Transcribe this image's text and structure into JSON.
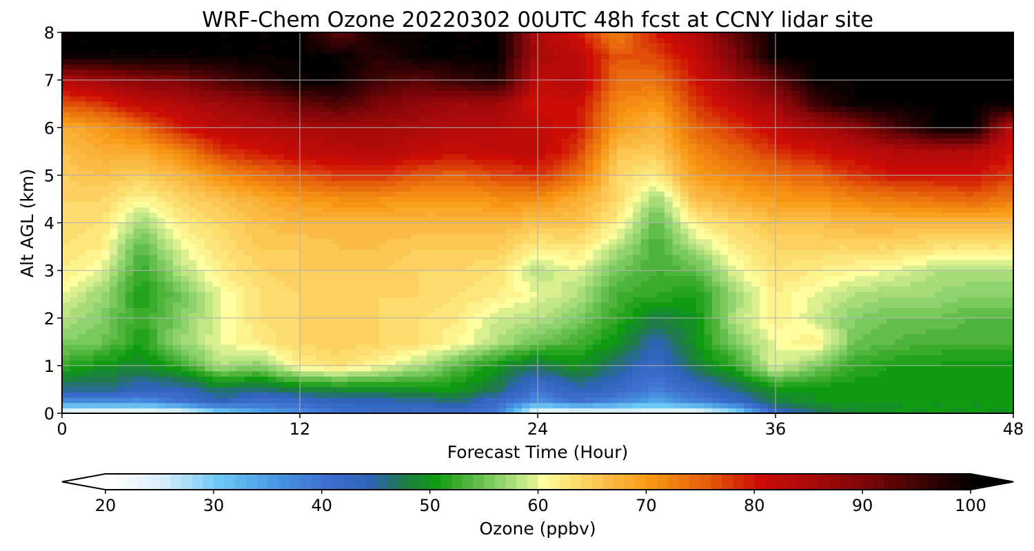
{
  "chart_data": {
    "type": "heatmap",
    "title": "WRF-Chem Ozone  20220302 00UTC 48h fcst at CCNY lidar site",
    "xlabel": "Forecast Time (Hour)",
    "ylabel": "Alt AGL (km)",
    "xlim": [
      0,
      48
    ],
    "ylim": [
      0,
      8
    ],
    "x_ticks": [
      0,
      12,
      24,
      36,
      48
    ],
    "y_ticks": [
      0,
      1,
      2,
      3,
      4,
      5,
      6,
      7,
      8
    ],
    "grid": true,
    "x": [
      0,
      2,
      4,
      6,
      8,
      10,
      12,
      14,
      16,
      18,
      20,
      22,
      24,
      26,
      28,
      30,
      32,
      34,
      36,
      38,
      40,
      42,
      44,
      46,
      48
    ],
    "y": [
      0,
      0.25,
      0.5,
      1,
      1.5,
      2,
      2.5,
      3,
      3.5,
      4,
      4.5,
      5,
      5.5,
      6,
      6.5,
      7,
      7.5,
      8
    ],
    "z": [
      [
        22,
        21,
        21,
        22,
        28,
        33,
        36,
        40,
        42,
        41,
        42,
        38,
        21,
        21,
        22,
        22,
        21,
        27,
        42,
        46,
        49,
        50,
        50,
        50,
        50
      ],
      [
        36,
        37,
        36,
        40,
        44,
        41,
        42,
        44,
        44,
        45,
        46,
        42,
        36,
        40,
        37,
        34,
        38,
        42,
        48,
        50,
        50,
        50,
        50,
        50,
        50
      ],
      [
        45,
        46,
        43,
        44,
        47,
        46,
        48,
        49,
        49,
        50,
        50,
        47,
        40,
        44,
        42,
        38,
        42,
        46,
        50,
        50,
        50,
        50,
        50,
        50,
        50
      ],
      [
        52,
        50,
        49,
        52,
        58,
        56,
        62,
        63,
        61,
        58,
        54,
        50,
        47,
        50,
        46,
        42,
        48,
        52,
        60,
        56,
        52,
        51,
        51,
        50,
        50
      ],
      [
        56,
        55,
        51,
        57,
        60,
        62,
        64,
        65,
        64,
        63,
        61,
        58,
        55,
        53,
        50,
        44,
        50,
        56,
        60,
        62,
        55,
        54,
        53,
        53,
        53
      ],
      [
        58,
        56,
        52,
        56,
        60,
        63,
        64,
        64,
        64,
        63,
        62,
        59,
        58,
        56,
        52,
        48,
        50,
        58,
        62,
        59,
        56,
        55,
        55,
        54,
        54
      ],
      [
        60,
        57,
        51,
        55,
        60,
        63,
        64,
        64,
        64,
        64,
        63,
        62,
        60,
        58,
        53,
        52,
        51,
        57,
        62,
        60,
        58,
        57,
        57,
        56,
        56
      ],
      [
        62,
        60,
        52,
        58,
        62,
        64,
        65,
        65,
        65,
        64,
        64,
        63,
        58,
        60,
        55,
        53,
        54,
        60,
        63,
        62,
        61,
        60,
        58,
        58,
        58
      ],
      [
        63,
        62,
        54,
        60,
        63,
        65,
        65,
        66,
        66,
        65,
        65,
        65,
        62,
        63,
        58,
        53,
        58,
        62,
        64,
        64,
        64,
        64,
        63,
        63,
        63
      ],
      [
        64,
        63,
        57,
        62,
        64,
        66,
        67,
        67,
        67,
        67,
        67,
        67,
        66,
        66,
        62,
        54,
        62,
        64,
        66,
        66,
        67,
        67,
        67,
        67,
        67
      ],
      [
        64,
        64,
        61,
        64,
        66,
        68,
        70,
        71,
        71,
        70,
        70,
        71,
        71,
        68,
        64,
        57,
        66,
        68,
        70,
        70,
        72,
        73,
        74,
        75,
        73
      ],
      [
        65,
        66,
        65,
        67,
        71,
        74,
        76,
        78,
        78,
        76,
        75,
        77,
        78,
        74,
        64,
        62,
        70,
        72,
        74,
        75,
        78,
        80,
        80,
        80,
        78
      ],
      [
        66,
        68,
        68,
        72,
        78,
        80,
        82,
        83,
        84,
        82,
        81,
        82,
        82,
        78,
        66,
        65,
        72,
        75,
        78,
        80,
        82,
        84,
        84,
        84,
        80
      ],
      [
        68,
        70,
        74,
        80,
        83,
        84,
        85,
        86,
        86,
        85,
        84,
        84,
        82,
        80,
        70,
        67,
        75,
        78,
        82,
        85,
        88,
        94,
        100,
        100,
        82
      ],
      [
        76,
        78,
        82,
        84,
        86,
        88,
        92,
        94,
        90,
        88,
        86,
        86,
        80,
        81,
        72,
        70,
        78,
        82,
        86,
        95,
        100,
        100,
        100,
        100,
        100
      ],
      [
        84,
        86,
        89,
        90,
        94,
        97,
        100,
        100,
        95,
        93,
        96,
        98,
        82,
        84,
        74,
        74,
        80,
        86,
        92,
        100,
        100,
        100,
        100,
        100,
        100
      ],
      [
        100,
        100,
        100,
        100,
        100,
        100,
        100,
        100,
        97,
        100,
        100,
        100,
        85,
        83,
        76,
        77,
        82,
        90,
        100,
        100,
        100,
        100,
        100,
        100,
        100
      ],
      [
        100,
        100,
        100,
        100,
        100,
        100,
        100,
        92,
        100,
        100,
        100,
        100,
        84,
        80,
        72,
        80,
        84,
        93,
        100,
        100,
        100,
        100,
        100,
        100,
        100
      ]
    ],
    "colorbar": {
      "label": "Ozone  (ppbv)",
      "min": 20,
      "max": 100,
      "step": 1,
      "ticks": [
        20,
        30,
        40,
        50,
        60,
        70,
        80,
        90,
        100
      ],
      "extend": "both",
      "colors": [
        {
          "v": 20,
          "c": "#ffffff"
        },
        {
          "v": 25,
          "c": "#d4ecfb"
        },
        {
          "v": 30,
          "c": "#6cc8f6"
        },
        {
          "v": 35,
          "c": "#4a99e3"
        },
        {
          "v": 40,
          "c": "#3d6ed0"
        },
        {
          "v": 44,
          "c": "#2f63b6"
        },
        {
          "v": 47,
          "c": "#1f7a4b"
        },
        {
          "v": 50,
          "c": "#0f9a12"
        },
        {
          "v": 53,
          "c": "#4fb43b"
        },
        {
          "v": 56,
          "c": "#8fd36e"
        },
        {
          "v": 59,
          "c": "#d9ef90"
        },
        {
          "v": 60,
          "c": "#fefe9e"
        },
        {
          "v": 63,
          "c": "#fcdc6c"
        },
        {
          "v": 66,
          "c": "#fbbc45"
        },
        {
          "v": 70,
          "c": "#f89614"
        },
        {
          "v": 75,
          "c": "#e55f0a"
        },
        {
          "v": 80,
          "c": "#cd0c05"
        },
        {
          "v": 85,
          "c": "#a60a0b"
        },
        {
          "v": 90,
          "c": "#7a0508"
        },
        {
          "v": 95,
          "c": "#3c0304"
        },
        {
          "v": 100,
          "c": "#000000"
        }
      ]
    }
  }
}
